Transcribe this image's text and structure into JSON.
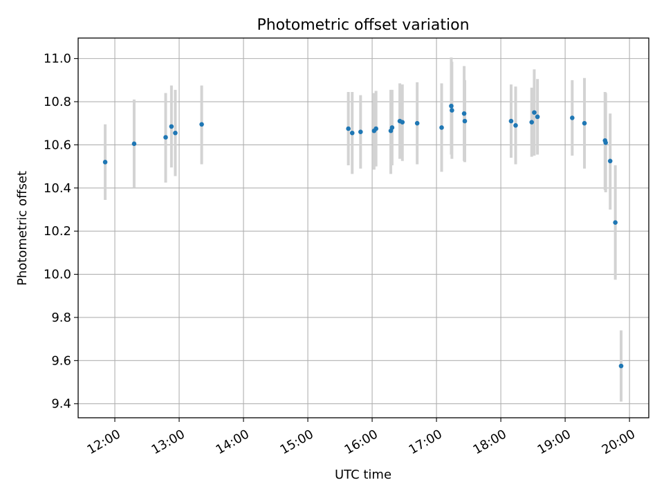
{
  "chart_data": {
    "type": "scatter",
    "title": "Photometric offset variation",
    "xlabel": "UTC time",
    "ylabel": "Photometric offset",
    "xlim": [
      11.43,
      20.3
    ],
    "ylim": [
      9.335,
      11.095
    ],
    "grid": true,
    "x_ticks": [
      {
        "value": 12,
        "label": "12:00"
      },
      {
        "value": 13,
        "label": "13:00"
      },
      {
        "value": 14,
        "label": "14:00"
      },
      {
        "value": 15,
        "label": "15:00"
      },
      {
        "value": 16,
        "label": "16:00"
      },
      {
        "value": 17,
        "label": "17:00"
      },
      {
        "value": 18,
        "label": "18:00"
      },
      {
        "value": 19,
        "label": "19:00"
      },
      {
        "value": 20,
        "label": "20:00"
      }
    ],
    "y_ticks": [
      {
        "value": 9.4,
        "label": "9.4"
      },
      {
        "value": 9.6,
        "label": "9.6"
      },
      {
        "value": 9.8,
        "label": "9.8"
      },
      {
        "value": 10.0,
        "label": "10.0"
      },
      {
        "value": 10.2,
        "label": "10.2"
      },
      {
        "value": 10.4,
        "label": "10.4"
      },
      {
        "value": 10.6,
        "label": "10.6"
      },
      {
        "value": 10.8,
        "label": "10.8"
      },
      {
        "value": 11.0,
        "label": "11.0"
      }
    ],
    "colors": {
      "point": "#1f77b4",
      "errorbar": "#d3d3d3",
      "grid": "#b0b0b0"
    },
    "points": [
      {
        "x": 11.85,
        "y": 10.52,
        "err_low": 10.345,
        "err_high": 10.695
      },
      {
        "x": 12.3,
        "y": 10.605,
        "err_low": 10.4,
        "err_high": 10.81
      },
      {
        "x": 12.79,
        "y": 10.635,
        "err_low": 10.425,
        "err_high": 10.84
      },
      {
        "x": 12.88,
        "y": 10.685,
        "err_low": 10.495,
        "err_high": 10.875
      },
      {
        "x": 12.94,
        "y": 10.655,
        "err_low": 10.455,
        "err_high": 10.855
      },
      {
        "x": 13.35,
        "y": 10.695,
        "err_low": 10.51,
        "err_high": 10.875
      },
      {
        "x": 15.63,
        "y": 10.675,
        "err_low": 10.505,
        "err_high": 10.845
      },
      {
        "x": 15.69,
        "y": 10.655,
        "err_low": 10.465,
        "err_high": 10.845
      },
      {
        "x": 15.82,
        "y": 10.66,
        "err_low": 10.49,
        "err_high": 10.83
      },
      {
        "x": 16.03,
        "y": 10.665,
        "err_low": 10.485,
        "err_high": 10.84
      },
      {
        "x": 16.06,
        "y": 10.675,
        "err_low": 10.5,
        "err_high": 10.85
      },
      {
        "x": 16.29,
        "y": 10.665,
        "err_low": 10.465,
        "err_high": 10.855
      },
      {
        "x": 16.31,
        "y": 10.68,
        "err_low": 10.505,
        "err_high": 10.855
      },
      {
        "x": 16.43,
        "y": 10.71,
        "err_low": 10.535,
        "err_high": 10.885
      },
      {
        "x": 16.47,
        "y": 10.705,
        "err_low": 10.525,
        "err_high": 10.88
      },
      {
        "x": 16.7,
        "y": 10.7,
        "err_low": 10.51,
        "err_high": 10.89
      },
      {
        "x": 17.08,
        "y": 10.68,
        "err_low": 10.475,
        "err_high": 10.885
      },
      {
        "x": 17.23,
        "y": 10.78,
        "err_low": 10.555,
        "err_high": 11.005
      },
      {
        "x": 17.24,
        "y": 10.76,
        "err_low": 10.535,
        "err_high": 10.985
      },
      {
        "x": 17.43,
        "y": 10.745,
        "err_low": 10.525,
        "err_high": 10.965
      },
      {
        "x": 17.44,
        "y": 10.71,
        "err_low": 10.52,
        "err_high": 10.9
      },
      {
        "x": 18.16,
        "y": 10.71,
        "err_low": 10.54,
        "err_high": 10.88
      },
      {
        "x": 18.23,
        "y": 10.69,
        "err_low": 10.51,
        "err_high": 10.87
      },
      {
        "x": 18.48,
        "y": 10.705,
        "err_low": 10.545,
        "err_high": 10.865
      },
      {
        "x": 18.52,
        "y": 10.75,
        "err_low": 10.55,
        "err_high": 10.95
      },
      {
        "x": 18.57,
        "y": 10.73,
        "err_low": 10.555,
        "err_high": 10.905
      },
      {
        "x": 19.11,
        "y": 10.725,
        "err_low": 10.55,
        "err_high": 10.9
      },
      {
        "x": 19.3,
        "y": 10.7,
        "err_low": 10.49,
        "err_high": 10.91
      },
      {
        "x": 19.62,
        "y": 10.62,
        "err_low": 10.39,
        "err_high": 10.845
      },
      {
        "x": 19.63,
        "y": 10.61,
        "err_low": 10.38,
        "err_high": 10.84
      },
      {
        "x": 19.7,
        "y": 10.525,
        "err_low": 10.3,
        "err_high": 10.745
      },
      {
        "x": 19.78,
        "y": 10.24,
        "err_low": 9.975,
        "err_high": 10.505
      },
      {
        "x": 19.87,
        "y": 9.575,
        "err_low": 9.41,
        "err_high": 9.74
      }
    ]
  }
}
